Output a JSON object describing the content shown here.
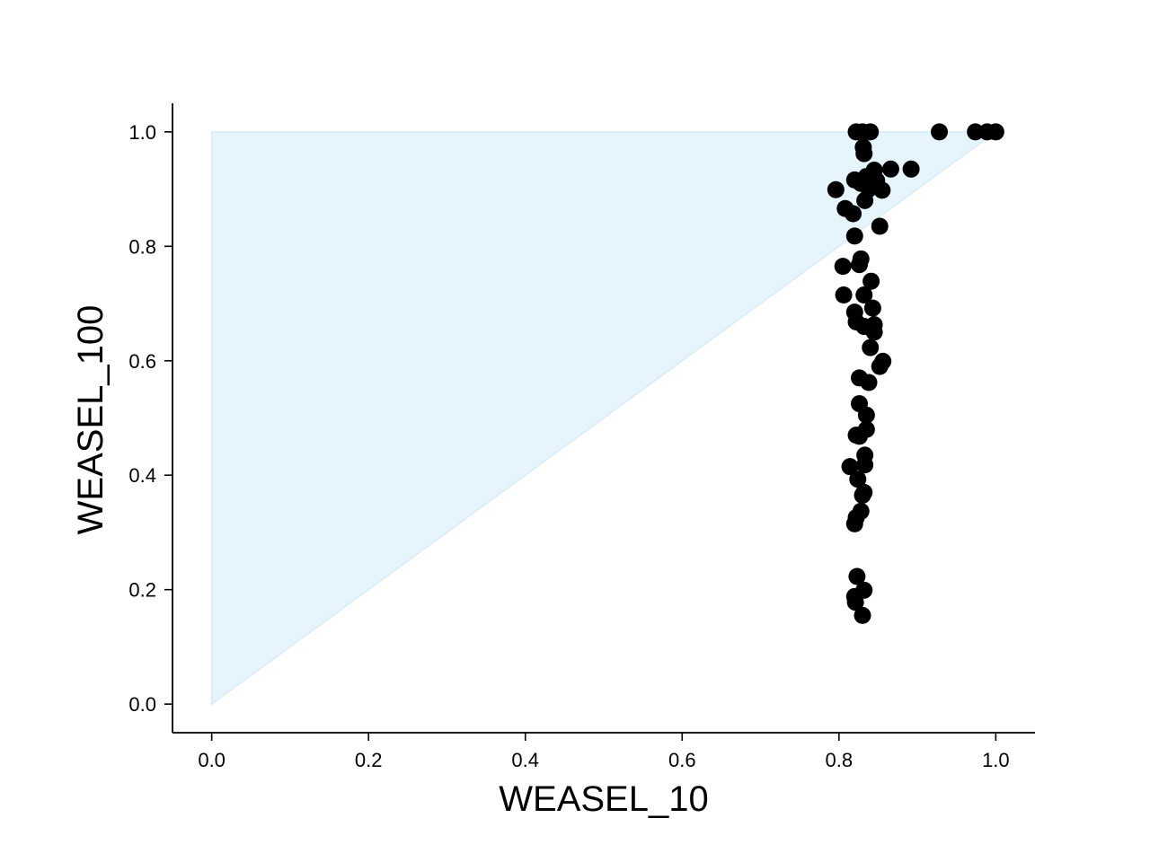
{
  "chart_data": {
    "type": "scatter",
    "title": "",
    "xlabel": "WEASEL_10",
    "ylabel": "WEASEL_100",
    "xlim": [
      -0.05,
      1.05
    ],
    "ylim": [
      -0.05,
      1.05
    ],
    "x_ticks": [
      "0.0",
      "0.2",
      "0.4",
      "0.6",
      "0.8",
      "1.0"
    ],
    "y_ticks": [
      "0.0",
      "0.2",
      "0.4",
      "0.6",
      "0.8",
      "1.0"
    ],
    "x_tick_values": [
      0.0,
      0.2,
      0.4,
      0.6,
      0.8,
      1.0
    ],
    "y_tick_values": [
      0.0,
      0.2,
      0.4,
      0.6,
      0.8,
      1.0
    ],
    "grid": false,
    "shaded_region": {
      "vertices": [
        [
          0.0,
          0.0
        ],
        [
          0.0,
          1.0
        ],
        [
          1.0,
          1.0
        ]
      ],
      "color": "#e6f4fc"
    },
    "marker_color": "#000000",
    "points": [
      {
        "x": 0.822,
        "y": 1.0
      },
      {
        "x": 0.83,
        "y": 1.0
      },
      {
        "x": 0.84,
        "y": 1.0
      },
      {
        "x": 0.928,
        "y": 1.0
      },
      {
        "x": 0.974,
        "y": 1.0
      },
      {
        "x": 0.989,
        "y": 1.0
      },
      {
        "x": 1.0,
        "y": 1.0
      },
      {
        "x": 0.831,
        "y": 0.973
      },
      {
        "x": 0.832,
        "y": 0.962
      },
      {
        "x": 0.845,
        "y": 0.933
      },
      {
        "x": 0.866,
        "y": 0.935
      },
      {
        "x": 0.892,
        "y": 0.935
      },
      {
        "x": 0.835,
        "y": 0.922
      },
      {
        "x": 0.82,
        "y": 0.916
      },
      {
        "x": 0.828,
        "y": 0.91
      },
      {
        "x": 0.84,
        "y": 0.912
      },
      {
        "x": 0.848,
        "y": 0.915
      },
      {
        "x": 0.838,
        "y": 0.9
      },
      {
        "x": 0.855,
        "y": 0.898
      },
      {
        "x": 0.796,
        "y": 0.899
      },
      {
        "x": 0.833,
        "y": 0.88
      },
      {
        "x": 0.808,
        "y": 0.866
      },
      {
        "x": 0.818,
        "y": 0.857
      },
      {
        "x": 0.852,
        "y": 0.835
      },
      {
        "x": 0.82,
        "y": 0.818
      },
      {
        "x": 0.828,
        "y": 0.778
      },
      {
        "x": 0.805,
        "y": 0.765
      },
      {
        "x": 0.826,
        "y": 0.768
      },
      {
        "x": 0.841,
        "y": 0.739
      },
      {
        "x": 0.832,
        "y": 0.715
      },
      {
        "x": 0.806,
        "y": 0.715
      },
      {
        "x": 0.843,
        "y": 0.692
      },
      {
        "x": 0.82,
        "y": 0.685
      },
      {
        "x": 0.822,
        "y": 0.668
      },
      {
        "x": 0.832,
        "y": 0.66
      },
      {
        "x": 0.845,
        "y": 0.663
      },
      {
        "x": 0.845,
        "y": 0.65
      },
      {
        "x": 0.84,
        "y": 0.623
      },
      {
        "x": 0.856,
        "y": 0.599
      },
      {
        "x": 0.852,
        "y": 0.59
      },
      {
        "x": 0.826,
        "y": 0.57
      },
      {
        "x": 0.838,
        "y": 0.562
      },
      {
        "x": 0.826,
        "y": 0.525
      },
      {
        "x": 0.835,
        "y": 0.505
      },
      {
        "x": 0.835,
        "y": 0.48
      },
      {
        "x": 0.822,
        "y": 0.47
      },
      {
        "x": 0.826,
        "y": 0.468
      },
      {
        "x": 0.833,
        "y": 0.435
      },
      {
        "x": 0.833,
        "y": 0.418
      },
      {
        "x": 0.814,
        "y": 0.415
      },
      {
        "x": 0.824,
        "y": 0.393
      },
      {
        "x": 0.832,
        "y": 0.37
      },
      {
        "x": 0.83,
        "y": 0.365
      },
      {
        "x": 0.828,
        "y": 0.337
      },
      {
        "x": 0.822,
        "y": 0.326
      },
      {
        "x": 0.82,
        "y": 0.315
      },
      {
        "x": 0.823,
        "y": 0.223
      },
      {
        "x": 0.832,
        "y": 0.199
      },
      {
        "x": 0.82,
        "y": 0.188
      },
      {
        "x": 0.821,
        "y": 0.178
      },
      {
        "x": 0.83,
        "y": 0.155
      }
    ]
  }
}
